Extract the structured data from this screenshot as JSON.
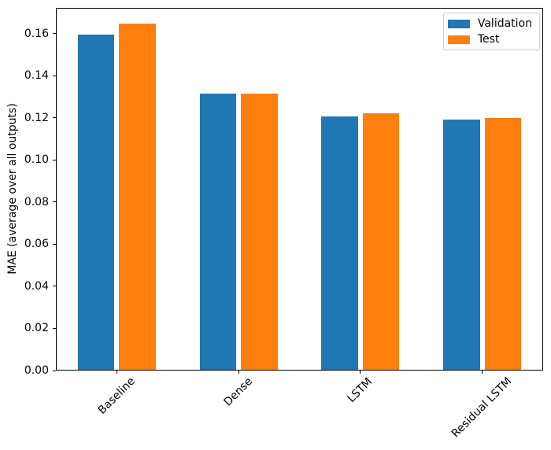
{
  "chart_data": {
    "type": "bar",
    "title": "",
    "xlabel": "",
    "ylabel": "MAE (average over all outputs)",
    "categories": [
      "Baseline",
      "Dense",
      "LSTM",
      "Residual LSTM"
    ],
    "series": [
      {
        "name": "Validation",
        "color": "#1f77b4",
        "values": [
          0.1593,
          0.1313,
          0.1204,
          0.1189
        ]
      },
      {
        "name": "Test",
        "color": "#ff7f0e",
        "values": [
          0.1645,
          0.1312,
          0.1219,
          0.1196
        ]
      }
    ],
    "ylim": [
      0,
      0.1723
    ],
    "yticks": [
      0.0,
      0.02,
      0.04,
      0.06,
      0.08,
      0.1,
      0.12,
      0.14,
      0.16
    ],
    "ytick_labels": [
      "0.00",
      "0.02",
      "0.04",
      "0.06",
      "0.08",
      "0.10",
      "0.12",
      "0.14",
      "0.16"
    ],
    "grid": false,
    "legend_position": "upper right",
    "xtick_rotation": 45,
    "bar_width_fraction": 0.3,
    "bar_offset_fraction": 0.17
  }
}
